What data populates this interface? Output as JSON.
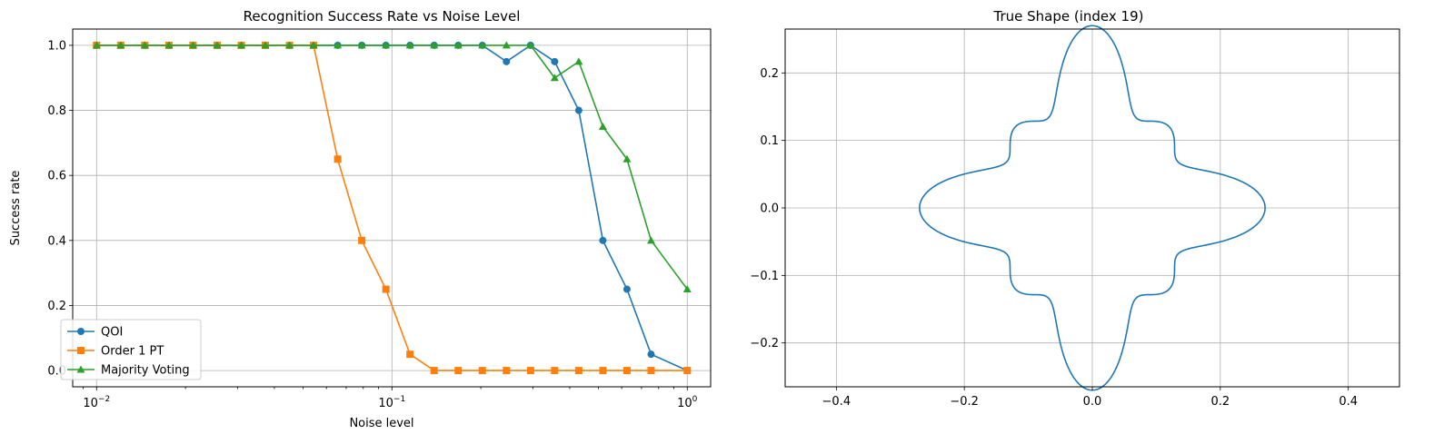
{
  "colors": {
    "qoi": "#1f77b4",
    "pt": "#ff7f0e",
    "mv": "#2ca02c",
    "grid": "#b0b0b0",
    "axis": "#000000"
  },
  "chart_data": [
    {
      "type": "line",
      "title": "Recognition Success Rate vs Noise Level",
      "xlabel": "Noise level",
      "ylabel": "Success rate",
      "xscale": "log",
      "xlim": [
        0.0083,
        1.2
      ],
      "ylim": [
        -0.05,
        1.05
      ],
      "grid": true,
      "legend_position": "lower-left",
      "xtick_values": [
        0.01,
        0.1,
        1
      ],
      "xtick_labels": [
        {
          "base": "10",
          "exp": "−2"
        },
        {
          "base": "10",
          "exp": "−1"
        },
        {
          "base": "10",
          "exp": "0"
        }
      ],
      "yticks": [
        0.0,
        0.2,
        0.4,
        0.6,
        0.8,
        1.0
      ],
      "ytick_labels": [
        "0.0",
        "0.2",
        "0.4",
        "0.6",
        "0.8",
        "1.0"
      ],
      "x": [
        0.01,
        0.01207,
        0.01456,
        0.01758,
        0.02121,
        0.0256,
        0.0309,
        0.03728,
        0.045,
        0.05429,
        0.06551,
        0.07906,
        0.09541,
        0.11514,
        0.13895,
        0.16768,
        0.20236,
        0.2442,
        0.29471,
        0.35565,
        0.42919,
        0.51795,
        0.62506,
        0.75431,
        0.91029,
        1.0
      ],
      "series": [
        {
          "name": "QOI",
          "color_key": "qoi",
          "marker": "circle",
          "x": [
            0.01,
            0.01207,
            0.01456,
            0.01758,
            0.02121,
            0.0256,
            0.0309,
            0.03728,
            0.045,
            0.05429,
            0.06551,
            0.07906,
            0.09541,
            0.11514,
            0.13895,
            0.16768,
            0.20236,
            0.2442,
            0.29471,
            0.35565,
            0.42919,
            0.51795,
            0.62506,
            0.75431,
            1.0
          ],
          "values": [
            1.0,
            1.0,
            1.0,
            1.0,
            1.0,
            1.0,
            1.0,
            1.0,
            1.0,
            1.0,
            1.0,
            1.0,
            1.0,
            1.0,
            1.0,
            1.0,
            1.0,
            0.95,
            1.0,
            0.95,
            0.8,
            0.4,
            0.25,
            0.05,
            0.0
          ]
        },
        {
          "name": "Order 1 PT",
          "color_key": "pt",
          "marker": "square",
          "x": [
            0.01,
            0.01207,
            0.01456,
            0.01758,
            0.02121,
            0.0256,
            0.0309,
            0.03728,
            0.045,
            0.05429,
            0.06551,
            0.07906,
            0.09541,
            0.11514,
            0.13895,
            0.16768,
            0.20236,
            0.2442,
            0.29471,
            0.35565,
            0.42919,
            0.51795,
            0.62506,
            0.75431,
            1.0
          ],
          "values": [
            1.0,
            1.0,
            1.0,
            1.0,
            1.0,
            1.0,
            1.0,
            1.0,
            1.0,
            1.0,
            0.65,
            0.4,
            0.25,
            0.05,
            0.0,
            0.0,
            0.0,
            0.0,
            0.0,
            0.0,
            0.0,
            0.0,
            0.0,
            0.0,
            0.0
          ]
        },
        {
          "name": "Majority Voting",
          "color_key": "mv",
          "marker": "triangle",
          "x": [
            0.01,
            0.01207,
            0.01456,
            0.01758,
            0.02121,
            0.0256,
            0.0309,
            0.03728,
            0.045,
            0.05429,
            0.06551,
            0.07906,
            0.09541,
            0.11514,
            0.13895,
            0.16768,
            0.20236,
            0.2442,
            0.29471,
            0.35565,
            0.42919,
            0.51795,
            0.62506,
            0.75431,
            1.0
          ],
          "values": [
            1.0,
            1.0,
            1.0,
            1.0,
            1.0,
            1.0,
            1.0,
            1.0,
            1.0,
            1.0,
            1.0,
            1.0,
            1.0,
            1.0,
            1.0,
            1.0,
            1.0,
            1.0,
            1.0,
            0.9,
            0.95,
            0.75,
            0.65,
            0.4,
            0.25
          ]
        }
      ]
    },
    {
      "type": "line",
      "title": "True Shape (index 19)",
      "xlabel": "",
      "ylabel": "",
      "xlim": [
        -0.48,
        0.48
      ],
      "ylim": [
        -0.265,
        0.265
      ],
      "grid": true,
      "xticks": [
        -0.4,
        -0.2,
        0.0,
        0.2,
        0.4
      ],
      "xtick_labels": [
        "−0.4",
        "−0.2",
        "0.0",
        "0.2",
        "0.4"
      ],
      "yticks": [
        -0.2,
        -0.1,
        0.0,
        0.1,
        0.2
      ],
      "ytick_labels": [
        "−0.2",
        "−0.1",
        "0.0",
        "0.1",
        "0.2"
      ],
      "shape": {
        "kind": "polar",
        "r0": 0.19,
        "amp1": 0.05,
        "freq1": 4,
        "amp2": 0.03,
        "freq2": 8,
        "samples": 720
      },
      "color_key": "qoi"
    }
  ]
}
